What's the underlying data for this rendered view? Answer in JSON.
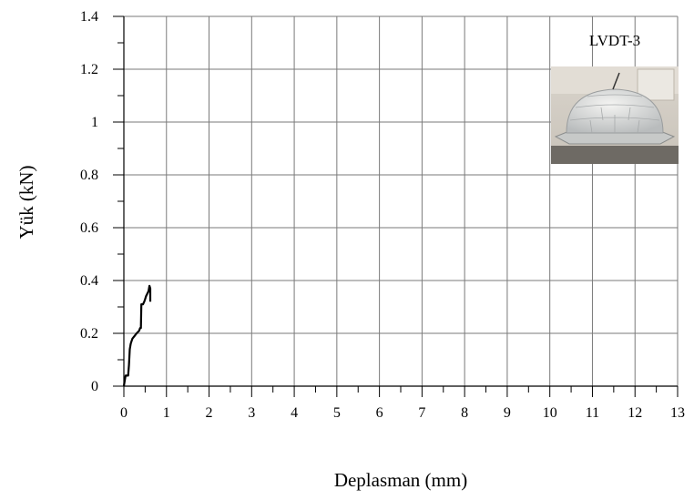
{
  "chart_data": {
    "type": "line",
    "title": "",
    "xlabel": "Deplasman (mm)",
    "ylabel": "Yük (kN)",
    "xlim": [
      0,
      13
    ],
    "ylim": [
      0,
      1.4
    ],
    "x_ticks": [
      "0",
      "1",
      "2",
      "3",
      "4",
      "5",
      "6",
      "7",
      "8",
      "9",
      "10",
      "11",
      "12",
      "13"
    ],
    "y_ticks": [
      "0",
      "0.2",
      "0.4",
      "0.6",
      "0.8",
      "1",
      "1.2",
      "1.4"
    ],
    "grid": true,
    "series": [
      {
        "color": "#000000",
        "x": [
          0,
          0.02,
          0.04,
          0.1,
          0.12,
          0.14,
          0.16,
          0.18,
          0.2,
          0.25,
          0.3,
          0.36,
          0.38,
          0.4,
          0.41,
          0.45,
          0.48,
          0.5,
          0.52,
          0.55,
          0.58,
          0.6,
          0.62,
          0.62
        ],
        "y": [
          0,
          0.02,
          0.04,
          0.04,
          0.08,
          0.14,
          0.16,
          0.17,
          0.18,
          0.19,
          0.2,
          0.21,
          0.22,
          0.22,
          0.31,
          0.31,
          0.32,
          0.33,
          0.34,
          0.35,
          0.36,
          0.38,
          0.37,
          0.32
        ]
      }
    ],
    "inset": {
      "label": "LVDT-3",
      "description_icon": "dome-specimen-photo"
    }
  }
}
